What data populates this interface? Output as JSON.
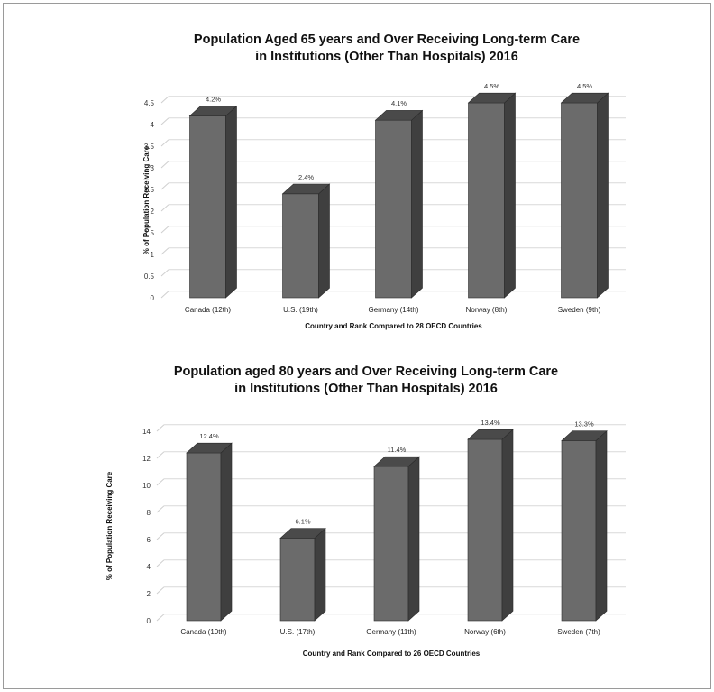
{
  "chart_data": [
    {
      "type": "bar",
      "title": [
        "Population Aged 65 years and Over Receiving Long-term Care",
        "in Institutions (Other Than Hospitals) 2016"
      ],
      "xlabel": "Country and Rank Compared to 28 OECD Countries",
      "ylabel": "% of Population Receiving Care",
      "categories": [
        "Canada (12th)",
        "U.S. (19th)",
        "Germany (14th)",
        "Norway (8th)",
        "Sweden (9th)"
      ],
      "values": [
        4.2,
        2.4,
        4.1,
        4.5,
        4.5
      ],
      "data_labels": [
        "4.2%",
        "2.4%",
        "4.1%",
        "4.5%",
        "4.5%"
      ],
      "yticks": [
        "0",
        "0.5",
        "1",
        "1.5",
        "2",
        "2.5",
        "3",
        "3.5",
        "4",
        "4.5"
      ],
      "ylim": [
        0,
        4.5
      ],
      "grid": true,
      "legend": "none",
      "bar_color": "#6b6b6b",
      "bar_side_color": "#3f3f3f",
      "bar_top_color": "#4a4a4a"
    },
    {
      "type": "bar",
      "title": [
        "Population aged 80 years and Over Receiving Long-term Care",
        "in Institutions (Other Than Hospitals) 2016"
      ],
      "xlabel": "Country and Rank Compared to 26 OECD Countries",
      "ylabel": "% of Population Receiving Care",
      "categories": [
        "Canada (10th)",
        "U.S. (17th)",
        "Germany (11th)",
        "Norway (6th)",
        "Sweden (7th)"
      ],
      "values": [
        12.4,
        6.1,
        11.4,
        13.4,
        13.3
      ],
      "data_labels": [
        "12.4%",
        "6.1%",
        "11.4%",
        "13.4%",
        "13.3%"
      ],
      "yticks": [
        "0",
        "2",
        "4",
        "6",
        "8",
        "10",
        "12",
        "14"
      ],
      "ylim": [
        0,
        14
      ],
      "grid": true,
      "legend": "none",
      "bar_color": "#6b6b6b",
      "bar_side_color": "#3f3f3f",
      "bar_top_color": "#4a4a4a"
    }
  ]
}
